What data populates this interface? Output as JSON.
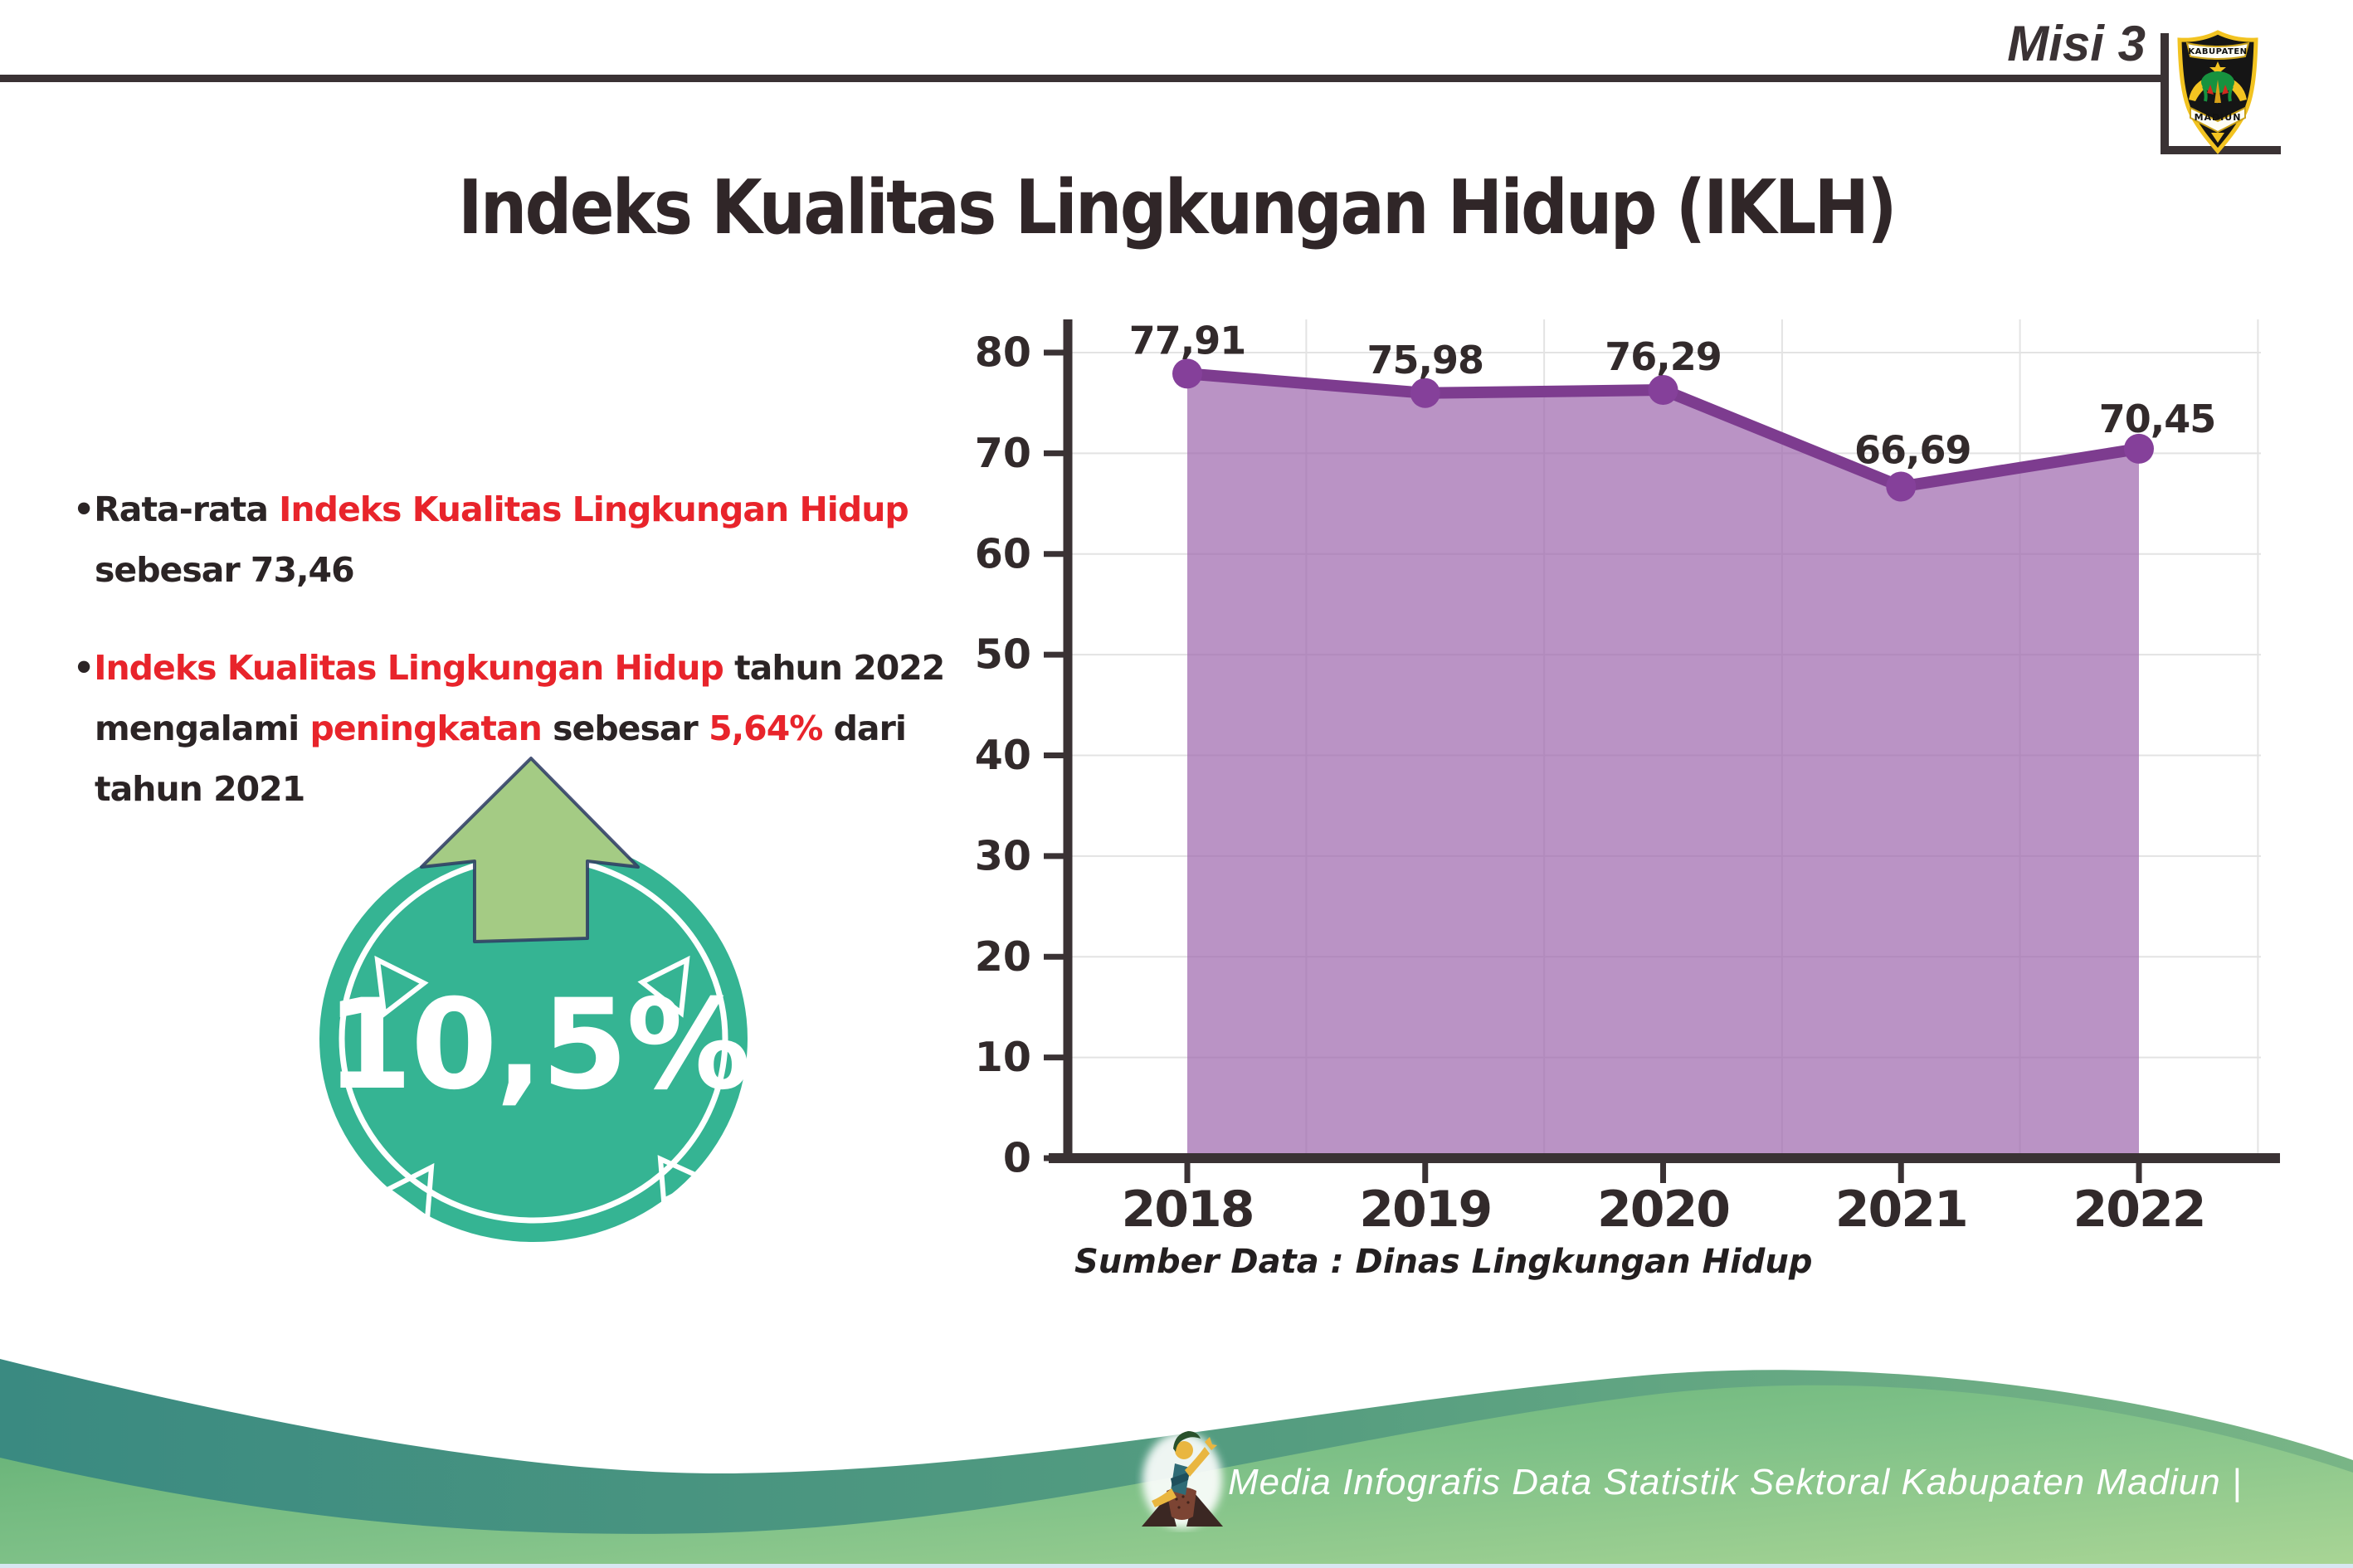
{
  "header": {
    "misi": "Misi 3",
    "logo": {
      "top": "KABUPATEN",
      "bottom": "MADIUN"
    }
  },
  "title": "Indeks Kualitas Lingkungan Hidup (IKLH)",
  "bullets": {
    "b1l1a": "•Rata-rata ",
    "b1l1b": "Indeks Kualitas Lingkungan Hidup",
    "b1l2": "sebesar 73,46",
    "b2l1a": "•",
    "b2l1b": "Indeks Kualitas Lingkungan Hidup",
    "b2l1c": " tahun 2022",
    "b2l2a": "mengalami ",
    "b2l2b": "peningkatan",
    "b2l2c": " sebesar ",
    "b2l2d": "5,64%",
    "b2l2e": " dari",
    "b2l3": "tahun 2021"
  },
  "badge": {
    "value": "10,5%",
    "circle_color": "#35b493",
    "arrow_color": "#a4cb84"
  },
  "chart_data": {
    "type": "area",
    "title": "",
    "x": [
      "2018",
      "2019",
      "2020",
      "2021",
      "2022"
    ],
    "values": [
      77.91,
      75.98,
      76.29,
      66.69,
      70.45
    ],
    "point_labels": [
      "77,91",
      "75,98",
      "76,29",
      "66,69",
      "70,45"
    ],
    "yticks": [
      0,
      10,
      20,
      30,
      40,
      50,
      60,
      70,
      80
    ],
    "ylim": [
      0,
      84
    ],
    "grid": true,
    "legend": "none",
    "line_color": "#7d3c8f",
    "dot_color": "#85409a",
    "fill_color": "rgba(160,105,175,0.72)",
    "source": "Sumber Data : Dinas Lingkungan Hidup"
  },
  "footer": {
    "text": "Media Infografis Data Statistik Sektoral Kabupaten Madiun |"
  },
  "colors": {
    "text_dark": "#2b2425",
    "accent_red": "#e8242b",
    "axis": "#3a3234",
    "footer_teal": "#3a8a81",
    "footer_green": "#7fc188"
  }
}
